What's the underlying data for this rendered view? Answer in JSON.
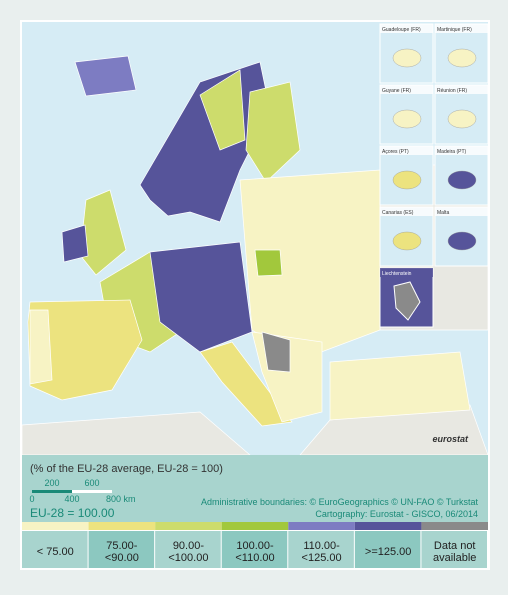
{
  "insets": [
    "Guadeloupe (FR)",
    "Martinique (FR)",
    "Guyane (FR)",
    "Réunion (FR)",
    "Açores (PT)",
    "Madeira (PT)",
    "Canarias (ES)",
    "Malta",
    "Liechtenstein"
  ],
  "logo": "eurostat",
  "info": {
    "subtitle": "(% of the EU-28 average, EU-28 = 100)",
    "scale_top": [
      "200",
      "600"
    ],
    "scale_bottom": [
      "0",
      "400",
      "800 km"
    ],
    "credits": [
      "Administrative boundaries: © EuroGeographics © UN-FAO © Turkstat",
      "Cartography: Eurostat - GISCO, 06/2014"
    ],
    "reference": "EU-28 = 100.00"
  },
  "legend": [
    {
      "lines": [
        "< 75.00"
      ],
      "color": "#f7f3c4"
    },
    {
      "lines": [
        "75.00-",
        "<90.00"
      ],
      "color": "#ece37f"
    },
    {
      "lines": [
        "90.00-",
        "<100.00"
      ],
      "color": "#cddc6c"
    },
    {
      "lines": [
        "100.00-",
        "<110.00"
      ],
      "color": "#a2c83c"
    },
    {
      "lines": [
        "110.00-",
        "<125.00"
      ],
      "color": "#7d7cc2"
    },
    {
      "lines": [
        ">=125.00"
      ],
      "color": "#56549a"
    },
    {
      "lines": [
        "Data not",
        "available"
      ],
      "color": "#8a8a8a"
    }
  ]
}
